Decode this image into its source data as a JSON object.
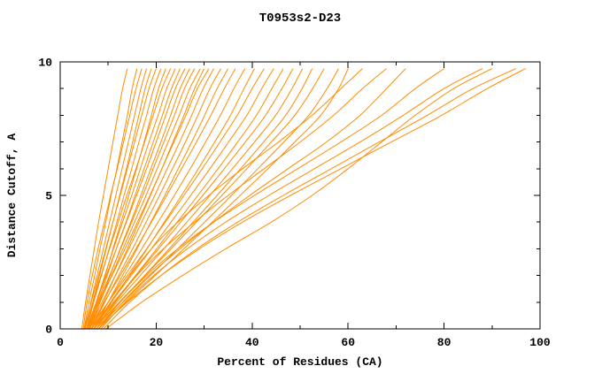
{
  "window": {
    "title": "T0953s2-D23"
  },
  "chart_data": {
    "type": "line",
    "title": "T0953s2-D23",
    "xlabel": "Percent of Residues (CA)",
    "ylabel": "Distance Cutoff, A",
    "xlim": [
      0,
      100
    ],
    "ylim": [
      0,
      10
    ],
    "x_major_ticks": [
      0,
      20,
      40,
      60,
      80,
      100
    ],
    "x_minor_ticks": [
      10,
      30,
      50,
      70,
      90
    ],
    "y_major_ticks": [
      0,
      5,
      10
    ],
    "y_minor_ticks": [
      1,
      2,
      3,
      4,
      6,
      7,
      8,
      9
    ],
    "grid": false,
    "legend": "none",
    "line_color": "#ff8c00",
    "y_levels": [
      0,
      1,
      2,
      3,
      4,
      5,
      6,
      7,
      8,
      9,
      9.75
    ],
    "series_x": [
      [
        4.5,
        5.3,
        6.2,
        7.1,
        8.0,
        9.0,
        10.0,
        11.0,
        12.0,
        13.0,
        14.0
      ],
      [
        5.0,
        6.0,
        7.2,
        8.3,
        9.5,
        10.6,
        11.8,
        12.9,
        14.0,
        15.0,
        16.0
      ],
      [
        4.8,
        5.6,
        6.7,
        7.9,
        9.2,
        10.5,
        11.9,
        13.2,
        14.5,
        15.8,
        17.0
      ],
      [
        5.2,
        6.4,
        7.7,
        9.0,
        10.3,
        11.6,
        12.9,
        14.2,
        15.5,
        16.8,
        18.0
      ],
      [
        5.5,
        6.8,
        8.2,
        9.6,
        11.0,
        12.4,
        13.8,
        15.1,
        16.4,
        17.7,
        19.0
      ],
      [
        5.0,
        6.5,
        8.0,
        9.5,
        11.0,
        12.5,
        14.0,
        15.5,
        17.0,
        18.5,
        20.0
      ],
      [
        5.5,
        7.0,
        8.6,
        10.2,
        11.8,
        13.3,
        14.9,
        16.4,
        18.0,
        19.5,
        21.0
      ],
      [
        6.0,
        7.7,
        9.4,
        11.0,
        12.7,
        14.3,
        15.9,
        17.5,
        19.0,
        20.5,
        22.0
      ],
      [
        5.2,
        6.8,
        8.5,
        10.3,
        12.1,
        13.9,
        15.8,
        17.6,
        19.4,
        21.2,
        23.0
      ],
      [
        5.8,
        7.5,
        9.3,
        11.1,
        13.0,
        14.9,
        16.7,
        18.5,
        20.4,
        22.2,
        24.0
      ],
      [
        6.0,
        7.9,
        9.8,
        11.7,
        13.7,
        15.6,
        17.5,
        19.4,
        21.3,
        23.2,
        25.0
      ],
      [
        5.5,
        7.5,
        9.6,
        11.7,
        13.8,
        15.9,
        18.0,
        20.0,
        22.0,
        24.0,
        26.0
      ],
      [
        6.2,
        8.3,
        10.4,
        12.5,
        14.7,
        16.8,
        18.9,
        21.0,
        23.0,
        25.0,
        27.0
      ],
      [
        5.8,
        8.0,
        10.3,
        12.6,
        14.9,
        17.2,
        19.4,
        21.6,
        23.8,
        25.9,
        28.0
      ],
      [
        6.0,
        8.3,
        10.7,
        13.1,
        15.5,
        17.9,
        20.2,
        22.5,
        24.8,
        27.0,
        29.2
      ],
      [
        6.5,
        9.0,
        11.5,
        14.0,
        16.4,
        18.8,
        21.2,
        23.5,
        25.8,
        28.0,
        30.0
      ],
      [
        5.5,
        8.1,
        10.8,
        13.5,
        16.1,
        18.7,
        21.2,
        23.7,
        26.2,
        28.6,
        31.0
      ],
      [
        6.0,
        8.7,
        11.5,
        14.3,
        17.0,
        19.7,
        22.3,
        24.9,
        27.4,
        29.8,
        32.0
      ],
      [
        6.5,
        9.3,
        12.2,
        15.1,
        17.9,
        20.7,
        23.4,
        26.1,
        28.7,
        31.2,
        33.5
      ],
      [
        7.0,
        10.0,
        13.0,
        16.0,
        18.9,
        21.8,
        24.6,
        27.4,
        30.1,
        32.7,
        35.0
      ],
      [
        6.0,
        9.2,
        12.5,
        15.8,
        19.0,
        22.2,
        25.3,
        28.4,
        31.4,
        34.2,
        36.5
      ],
      [
        6.5,
        10.0,
        13.5,
        17.0,
        20.4,
        23.8,
        27.1,
        30.3,
        33.4,
        36.2,
        38.5
      ],
      [
        7.0,
        10.7,
        14.4,
        18.1,
        21.7,
        25.3,
        28.8,
        32.2,
        35.5,
        38.3,
        40.5
      ],
      [
        6.0,
        10.0,
        14.0,
        18.0,
        21.9,
        25.8,
        29.6,
        33.3,
        36.9,
        40.0,
        42.5
      ],
      [
        6.5,
        10.6,
        14.8,
        19.0,
        23.1,
        27.2,
        31.2,
        35.1,
        38.9,
        42.0,
        44.5
      ],
      [
        7.0,
        11.3,
        15.7,
        20.1,
        24.4,
        28.7,
        32.9,
        37.0,
        40.9,
        44.1,
        46.5
      ],
      [
        6.5,
        11.1,
        15.8,
        20.5,
        25.1,
        29.7,
        34.2,
        38.6,
        42.8,
        46.2,
        48.5
      ],
      [
        7.0,
        11.8,
        16.7,
        21.6,
        26.4,
        31.2,
        35.9,
        40.5,
        44.9,
        48.3,
        50.5
      ],
      [
        7.5,
        12.5,
        17.6,
        22.7,
        27.7,
        32.7,
        37.6,
        42.4,
        47.0,
        50.4,
        52.5
      ],
      [
        7.0,
        12.3,
        17.7,
        23.1,
        28.4,
        33.7,
        38.9,
        44.0,
        48.9,
        52.6,
        55.0
      ],
      [
        7.5,
        13.1,
        18.8,
        24.5,
        30.1,
        35.7,
        41.2,
        46.6,
        51.8,
        55.6,
        58.0
      ],
      [
        8.0,
        13.8,
        19.8,
        25.8,
        31.7,
        37.5,
        43.3,
        48.9,
        54.3,
        58.0,
        60.0
      ],
      [
        7.0,
        10.5,
        14.5,
        19.0,
        24.5,
        31.0,
        38.0,
        45.5,
        52.5,
        58.5,
        63.0
      ],
      [
        7.5,
        11.5,
        16.0,
        21.5,
        28.0,
        35.0,
        42.5,
        50.0,
        57.0,
        63.0,
        68.0
      ],
      [
        8.0,
        13.0,
        18.5,
        25.0,
        32.0,
        39.5,
        47.5,
        55.5,
        62.5,
        68.0,
        72.0
      ],
      [
        8.0,
        12.5,
        18.0,
        24.5,
        32.0,
        40.5,
        49.5,
        58.5,
        67.0,
        74.0,
        80.0
      ],
      [
        8.5,
        13.5,
        19.5,
        26.5,
        34.5,
        43.5,
        53.0,
        62.5,
        71.5,
        80.0,
        88.0
      ],
      [
        9.0,
        14.5,
        21.0,
        28.5,
        37.0,
        46.5,
        56.5,
        66.5,
        76.5,
        86.0,
        95.0
      ],
      [
        9.5,
        17.0,
        25.5,
        34.5,
        44.0,
        52.5,
        60.0,
        67.0,
        74.0,
        82.0,
        90.0
      ],
      [
        8.0,
        14.0,
        21.0,
        29.0,
        38.0,
        48.0,
        58.5,
        69.0,
        79.5,
        89.0,
        97.0
      ]
    ]
  }
}
